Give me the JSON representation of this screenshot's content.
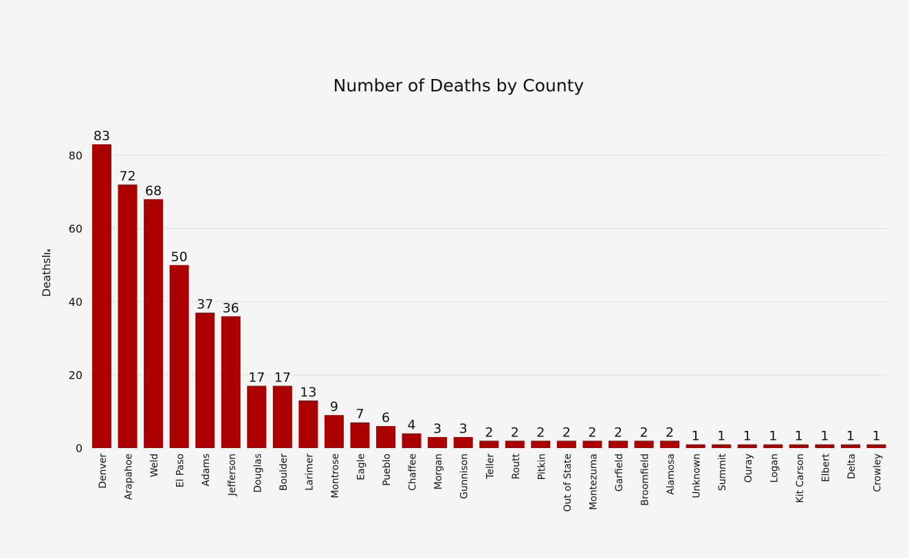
{
  "chart_data": {
    "type": "bar",
    "title": "Number of Deaths by County",
    "xlabel": "",
    "ylabel": "Deaths",
    "ylim": [
      0,
      85
    ],
    "yticks": [
      0,
      20,
      40,
      60,
      80
    ],
    "grid": true,
    "bar_color": "#aa0000",
    "categories": [
      "Denver",
      "Arapahoe",
      "Weld",
      "El Paso",
      "Adams",
      "Jefferson",
      "Douglas",
      "Boulder",
      "Larimer",
      "Montrose",
      "Eagle",
      "Pueblo",
      "Chaffee",
      "Morgan",
      "Gunnison",
      "Teller",
      "Routt",
      "Pitkin",
      "Out of State",
      "Montezuma",
      "Garfield",
      "Broomfield",
      "Alamosa",
      "Unknown",
      "Summit",
      "Ouray",
      "Logan",
      "Kit Carson",
      "Elbert",
      "Delta",
      "Crowley"
    ],
    "values": [
      83,
      72,
      68,
      50,
      37,
      36,
      17,
      17,
      13,
      9,
      7,
      6,
      4,
      3,
      3,
      2,
      2,
      2,
      2,
      2,
      2,
      2,
      2,
      1,
      1,
      1,
      1,
      1,
      1,
      1,
      1
    ]
  }
}
